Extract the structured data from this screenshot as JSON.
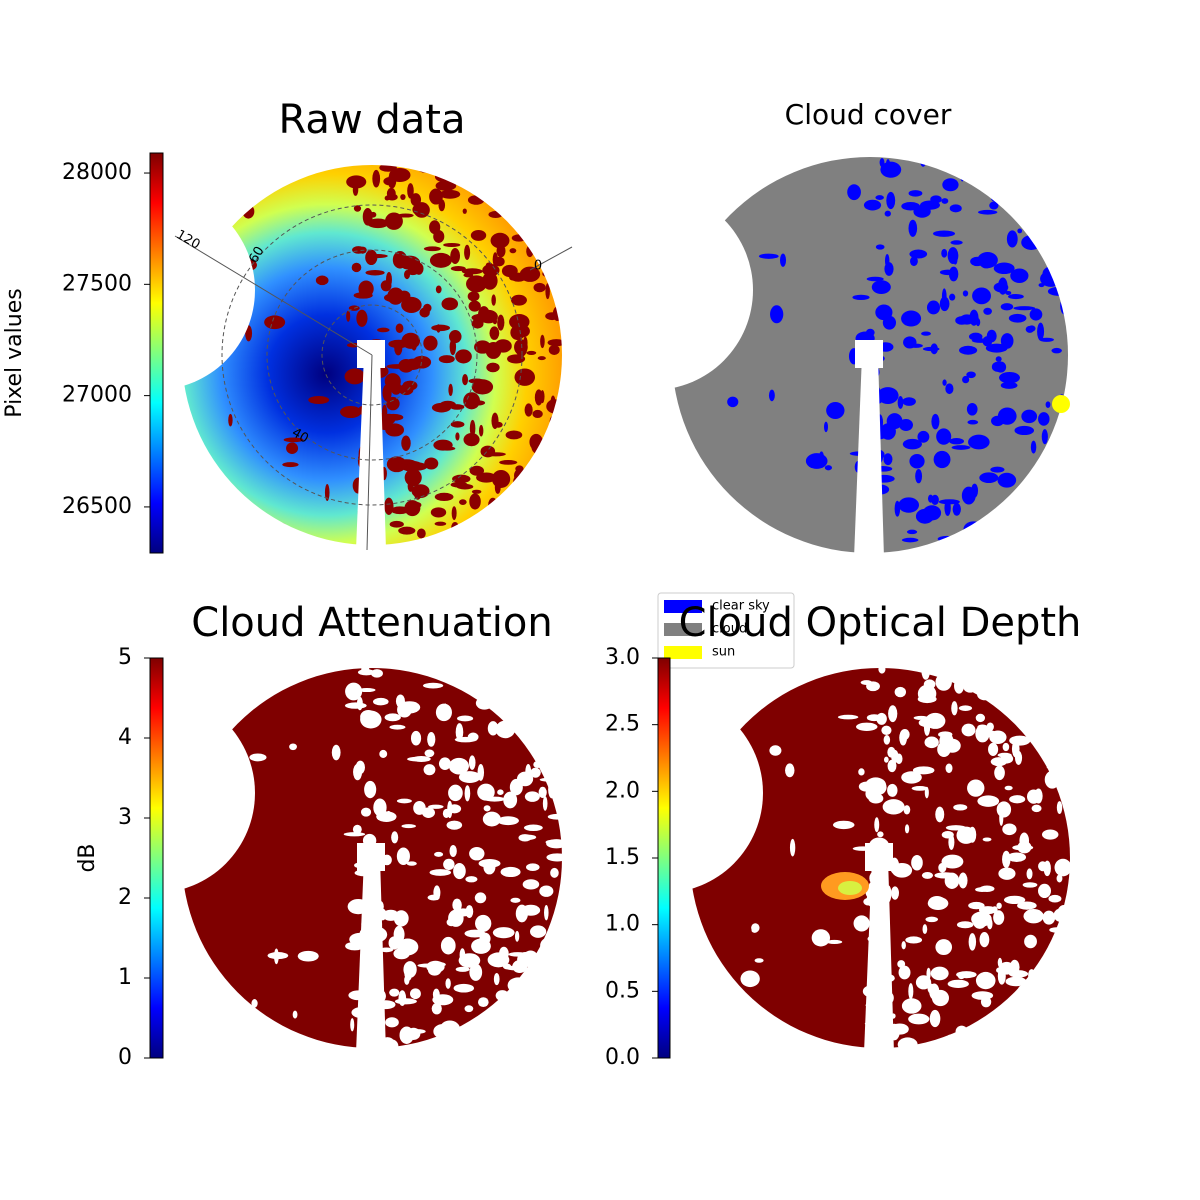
{
  "chart_data": [
    {
      "type": "image",
      "title": "Raw data",
      "ylabel": "Pixel values",
      "colormap": "jet",
      "ylim": [
        26293,
        28090
      ],
      "yticks": [
        26500,
        27000,
        27500,
        28000
      ],
      "annotations": [
        "120",
        "60",
        "40",
        "0"
      ]
    },
    {
      "type": "categorical-image",
      "title": "Cloud cover",
      "series": [
        {
          "name": "clear sky",
          "color": "#0000ff"
        },
        {
          "name": "cloud",
          "color": "#808080"
        },
        {
          "name": "sun",
          "color": "#ffff00"
        }
      ]
    },
    {
      "type": "image",
      "title": "Cloud Attenuation",
      "ylabel": "dB",
      "colormap": "jet",
      "ylim": [
        0,
        5
      ],
      "yticks": [
        0,
        1,
        2,
        3,
        4,
        5
      ]
    },
    {
      "type": "image",
      "title": "Cloud Optical Depth",
      "colormap": "jet",
      "ylim": [
        0,
        3
      ],
      "yticks": [
        {
          "value": 0,
          "label": "0.0"
        },
        {
          "value": 0.5,
          "label": "0.5"
        },
        {
          "value": 1,
          "label": "1.0"
        },
        {
          "value": 1.5,
          "label": "1.5"
        },
        {
          "value": 2,
          "label": "2.0"
        },
        {
          "value": 2.5,
          "label": "2.5"
        },
        {
          "value": 3,
          "label": "3.0"
        }
      ]
    }
  ]
}
